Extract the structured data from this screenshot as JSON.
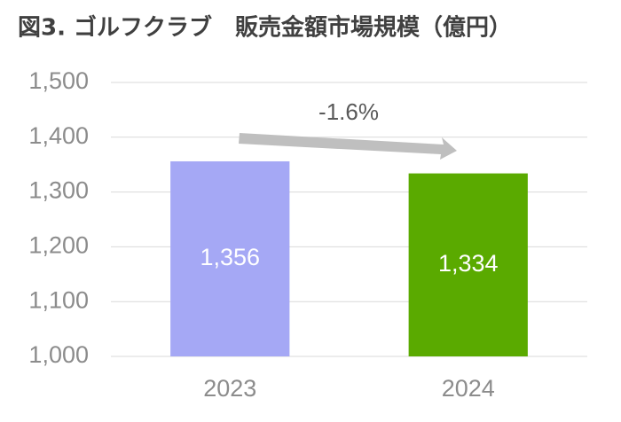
{
  "chart_data": {
    "type": "bar",
    "title": "図3. ゴルフクラブ　販売金額市場規模（億円）",
    "categories": [
      "2023",
      "2024"
    ],
    "values": [
      1356,
      1334
    ],
    "value_labels": [
      "1,356",
      "1,334"
    ],
    "colors": [
      "#a5a8f5",
      "#5aaa00"
    ],
    "ylim": [
      1000,
      1500
    ],
    "yticks": [
      {
        "value": 1000,
        "label": "1,000"
      },
      {
        "value": 1100,
        "label": "1,100"
      },
      {
        "value": 1200,
        "label": "1,200"
      },
      {
        "value": 1300,
        "label": "1,300"
      },
      {
        "value": 1400,
        "label": "1,400"
      },
      {
        "value": 1500,
        "label": "1,500"
      }
    ],
    "grid": true,
    "annotation": "-1.6%"
  }
}
